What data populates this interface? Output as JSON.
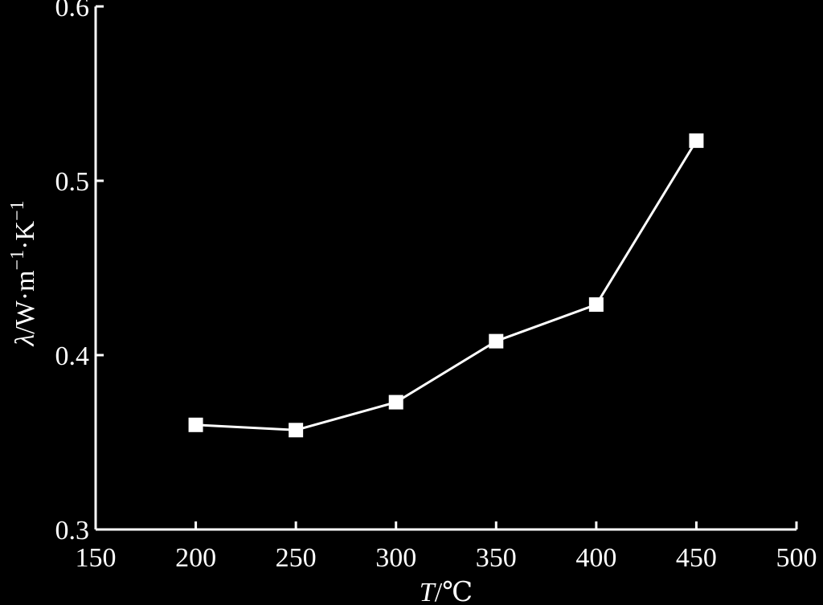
{
  "chart_data": {
    "type": "line",
    "title": "",
    "xlabel_var": "T",
    "xlabel_unit": "/℃",
    "ylabel_var": "λ",
    "ylabel_unit_main": "/W·m",
    "ylabel_exp1": "−1",
    "ylabel_mid": "·K",
    "ylabel_exp2": "−1",
    "xlim": [
      150,
      500
    ],
    "ylim": [
      0.3,
      0.6
    ],
    "xticks": [
      150,
      200,
      250,
      300,
      350,
      400,
      450,
      500
    ],
    "xtick_labels": [
      "150",
      "200",
      "250",
      "300",
      "350",
      "400",
      "450",
      "500"
    ],
    "yticks": [
      0.3,
      0.4,
      0.5,
      0.6
    ],
    "ytick_labels": [
      "0.3",
      "0.4",
      "0.5",
      "0.6"
    ],
    "grid": false,
    "marker": "square",
    "colors": {
      "background": "#000000",
      "foreground": "#ffffff"
    },
    "x": [
      200,
      250,
      300,
      350,
      400,
      450
    ],
    "y": [
      0.36,
      0.357,
      0.373,
      0.408,
      0.429,
      0.523
    ]
  }
}
